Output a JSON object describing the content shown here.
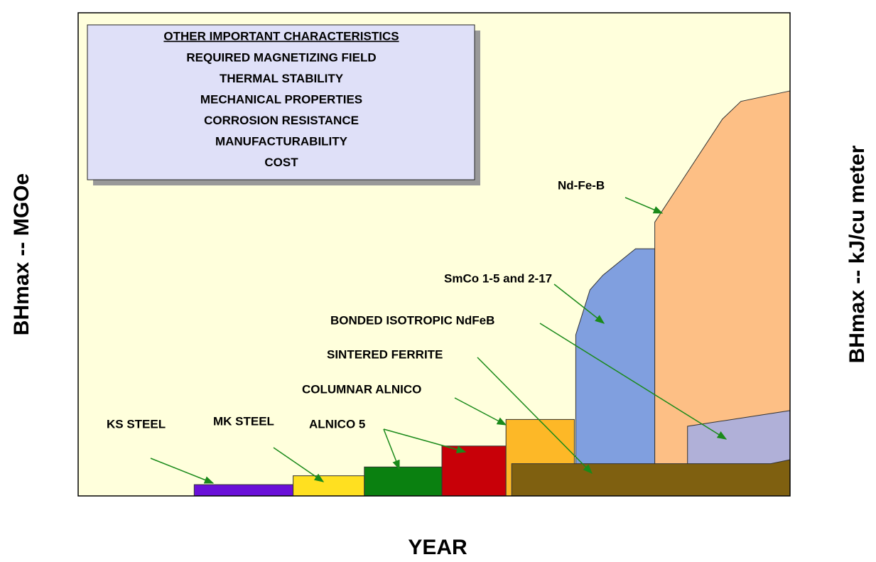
{
  "chart_data": {
    "type": "area",
    "xlabel": "YEAR",
    "ylabel": "BHmax -- MGOe",
    "y2label": "BHmax -- kJ/cu meter",
    "xlim": [
      1900,
      2000
    ],
    "xticks": [
      1900,
      1920,
      1940,
      1960,
      1980,
      2000
    ],
    "ylim": [
      0,
      60
    ],
    "yticks": [
      0,
      10,
      20,
      30,
      40,
      50,
      60
    ],
    "y2lim": [
      0,
      480
    ],
    "y2ticks": [
      0,
      40,
      80,
      120,
      160,
      200,
      240,
      280,
      320,
      360,
      400,
      440,
      480
    ],
    "grid": true,
    "series": [
      {
        "color": "#6a10d8",
        "x": [
          1916.3,
          1930.2
        ],
        "values": [
          1.4,
          1.4
        ]
      },
      {
        "color": "#ffe020",
        "x": [
          1930.2,
          1940.2
        ],
        "values": [
          2.5,
          2.5
        ]
      },
      {
        "color": "#0a8010",
        "x": [
          1940.2,
          1951.1
        ],
        "values": [
          3.6,
          3.6
        ]
      },
      {
        "color": "#c80008",
        "x": [
          1951.1,
          1960.1
        ],
        "values": [
          6.2,
          6.2
        ]
      },
      {
        "color": "#fdb827",
        "x": [
          1960.1,
          1969.7
        ],
        "values": [
          9.5,
          9.5
        ]
      },
      {
        "color": "#809fdf",
        "x": [
          1969.9,
          1971.9,
          1973.7,
          1978.3,
          1981.0
        ],
        "values": [
          20,
          25.6,
          27.4,
          30.7,
          30.7
        ]
      },
      {
        "color": "#fdbf85",
        "x": [
          1981.0,
          1990.5,
          1993.1,
          2000
        ],
        "values": [
          34,
          46.8,
          49,
          50.3
        ]
      },
      {
        "color": "#b0b0d8",
        "x": [
          1985.6,
          2000
        ],
        "values": [
          8.65,
          10.6
        ]
      },
      {
        "color": "#7f6010",
        "x": [
          1960.9,
          1997.3,
          2000
        ],
        "values": [
          4.0,
          4.0,
          4.5
        ]
      }
    ],
    "annotations": [
      "KS STEEL",
      "MK STEEL",
      "ALNICO 5",
      "COLUMNAR ALNICO",
      "SINTERED FERRITE",
      "BONDED ISOTROPIC NdFeB",
      "SmCo 1-5 and 2-17",
      "Nd-Fe-B"
    ],
    "box": {
      "title": "OTHER IMPORTANT CHARACTERISTICS",
      "items": [
        "REQUIRED MAGNETIZING FIELD",
        "THERMAL STABILITY",
        "MECHANICAL PROPERTIES",
        "CORROSION RESISTANCE",
        "MANUFACTURABILITY",
        "COST"
      ]
    }
  }
}
